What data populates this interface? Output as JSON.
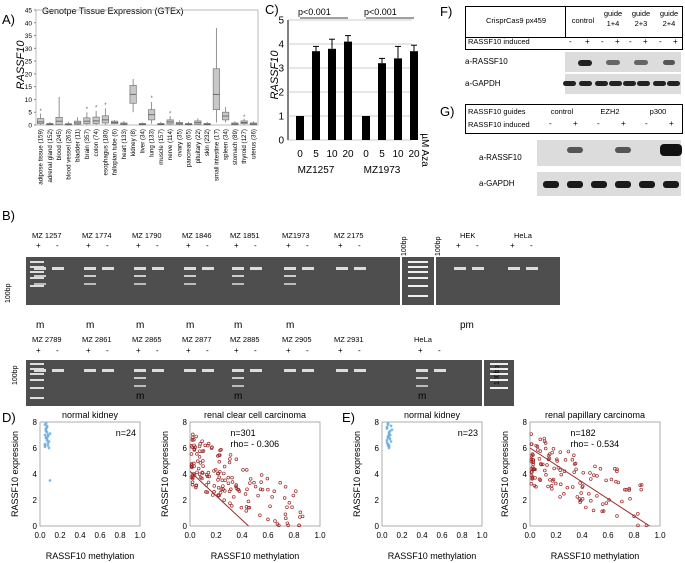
{
  "panels": {
    "A": "A)",
    "B": "B)",
    "C": "C)",
    "D": "D)",
    "E": "E)",
    "F": "F)",
    "G": "G)"
  },
  "panelA": {
    "title": "Genotpe Tissue Expression (GTEx)",
    "ylabel": "RASSF10",
    "yticks": [
      "0",
      "5",
      "10",
      "15",
      "20",
      "25",
      "30",
      "35",
      "40",
      "45"
    ],
    "tissues": [
      {
        "label": "adipose tissue (159)",
        "q1": 0.5,
        "med": 1.2,
        "q3": 2.5,
        "lo": 0.1,
        "hi": 4.5,
        "out": [
          5.5
        ]
      },
      {
        "label": "adrenal gland (152)",
        "q1": 0.1,
        "med": 0.3,
        "q3": 0.6,
        "lo": 0,
        "hi": 1.2,
        "out": []
      },
      {
        "label": "blood (245)",
        "q1": 0.2,
        "med": 1.5,
        "q3": 3.0,
        "lo": 0,
        "hi": 11,
        "out": []
      },
      {
        "label": "blood vessel (263)",
        "q1": 0.05,
        "med": 0.2,
        "q3": 0.5,
        "lo": 0,
        "hi": 1.2,
        "out": []
      },
      {
        "label": "bladder (11)",
        "q1": 0.3,
        "med": 0.8,
        "q3": 1.5,
        "lo": 0,
        "hi": 3,
        "out": []
      },
      {
        "label": "brain (357)",
        "q1": 0.5,
        "med": 1.5,
        "q3": 2.8,
        "lo": 0.1,
        "hi": 5,
        "out": [
          6.2
        ]
      },
      {
        "label": "colon (74)",
        "q1": 0.6,
        "med": 1.6,
        "q3": 3.1,
        "lo": 0.1,
        "hi": 5.5,
        "out": [
          6.8
        ]
      },
      {
        "label": "esophagus (180)",
        "q1": 0.8,
        "med": 2.0,
        "q3": 3.6,
        "lo": 0.1,
        "hi": 6.5,
        "out": [
          7.8
        ]
      },
      {
        "label": "fallopian tube (6)",
        "q1": 0.5,
        "med": 1.0,
        "q3": 1.5,
        "lo": 0.3,
        "hi": 2,
        "out": []
      },
      {
        "label": "heart (133)",
        "q1": 0.1,
        "med": 0.4,
        "q3": 0.8,
        "lo": 0,
        "hi": 1.6,
        "out": []
      },
      {
        "label": "kidney (8)",
        "q1": 8.5,
        "med": 12,
        "q3": 15.5,
        "lo": 5,
        "hi": 18,
        "out": []
      },
      {
        "label": "liver (34)",
        "q1": 0.1,
        "med": 0.3,
        "q3": 0.6,
        "lo": 0,
        "hi": 1,
        "out": []
      },
      {
        "label": "lung (133)",
        "q1": 2,
        "med": 4,
        "q3": 6,
        "lo": 0.5,
        "hi": 9,
        "out": [
          10.5
        ]
      },
      {
        "label": "muscle (157)",
        "q1": 0.1,
        "med": 0.3,
        "q3": 0.6,
        "lo": 0,
        "hi": 1.2,
        "out": []
      },
      {
        "label": "nerve (114)",
        "q1": 0.4,
        "med": 1.2,
        "q3": 2.0,
        "lo": 0.1,
        "hi": 3.5,
        "out": [
          4.5
        ]
      },
      {
        "label": "ovary (35)",
        "q1": 0.2,
        "med": 0.5,
        "q3": 1.0,
        "lo": 0,
        "hi": 1.8,
        "out": []
      },
      {
        "label": "pancreas (65)",
        "q1": 0.1,
        "med": 0.3,
        "q3": 0.6,
        "lo": 0,
        "hi": 1.2,
        "out": []
      },
      {
        "label": "pituitary (22)",
        "q1": 0.3,
        "med": 0.9,
        "q3": 1.6,
        "lo": 0.1,
        "hi": 2.6,
        "out": []
      },
      {
        "label": "skin (232)",
        "q1": 0.1,
        "med": 0.3,
        "q3": 0.6,
        "lo": 0,
        "hi": 1.2,
        "out": []
      },
      {
        "label": "small intestine (17)",
        "q1": 6,
        "med": 12,
        "q3": 22,
        "lo": 1,
        "hi": 38,
        "out": []
      },
      {
        "label": "spleen (34)",
        "q1": 2,
        "med": 3.5,
        "q3": 5,
        "lo": 1,
        "hi": 7,
        "out": []
      },
      {
        "label": "stomach (89)",
        "q1": 0.1,
        "med": 0.4,
        "q3": 0.8,
        "lo": 0,
        "hi": 1.4,
        "out": []
      },
      {
        "label": "thyroid (127)",
        "q1": 0.5,
        "med": 1.0,
        "q3": 1.6,
        "lo": 0.1,
        "hi": 2.5,
        "out": [
          3.2
        ]
      },
      {
        "label": "uterus (36)",
        "q1": 0.1,
        "med": 0.4,
        "q3": 0.8,
        "lo": 0,
        "hi": 1.4,
        "out": []
      }
    ]
  },
  "chart_data": [
    {
      "type": "bar",
      "title": "",
      "ylabel": "RASSF10",
      "ylim": [
        0,
        5
      ],
      "yticks": [
        "0",
        "1",
        "2",
        "3",
        "4",
        "5"
      ],
      "groups": [
        {
          "name": "MZ1257",
          "categories": [
            "0",
            "5",
            "10",
            "20"
          ],
          "values": [
            1.0,
            3.7,
            3.8,
            4.1
          ],
          "err": [
            0,
            0.2,
            0.4,
            0.25
          ]
        },
        {
          "name": "MZ1973",
          "categories": [
            "0",
            "5",
            "10",
            "20"
          ],
          "values": [
            1.0,
            3.2,
            3.4,
            3.7
          ],
          "err": [
            0,
            0.2,
            0.5,
            0.25
          ]
        }
      ],
      "annotations": [
        "p<0.001",
        "p<0.001"
      ],
      "unit_label": "µM Aza"
    },
    {
      "type": "scatter",
      "title": "normal kidney",
      "xlabel": "RASSF10 methylation",
      "ylabel": "RASSF10 expression",
      "n_label": "n=24",
      "xlim": [
        0,
        1.0
      ],
      "ylim": [
        0,
        8
      ],
      "x": [
        0.05,
        0.06,
        0.07,
        0.05,
        0.08,
        0.06,
        0.07,
        0.09,
        0.05,
        0.06,
        0.1,
        0.07,
        0.08,
        0.06,
        0.05,
        0.07,
        0.06,
        0.08,
        0.09,
        0.07,
        0.06,
        0.08,
        0.05,
        0.1
      ],
      "y": [
        7.8,
        7.5,
        7.2,
        7.0,
        6.9,
        6.8,
        7.6,
        6.5,
        6.3,
        7.3,
        7.1,
        6.6,
        6.2,
        7.4,
        6.1,
        6.7,
        7.9,
        6.4,
        6.0,
        7.7,
        6.8,
        7.0,
        6.2,
        3.5
      ]
    },
    {
      "type": "scatter",
      "title": "renal clear cell carcinoma",
      "xlabel": "RASSF10 methylation",
      "ylabel": "RASSF10 expression",
      "n_label": "n=301",
      "rho_label": "rho= - 0.306",
      "xlim": [
        0,
        1.0
      ],
      "ylim": [
        0,
        8
      ]
    },
    {
      "type": "scatter",
      "title": "normal kidney",
      "xlabel": "RASSF10 methylation",
      "ylabel": "RASSF10 expression",
      "n_label": "n=23",
      "xlim": [
        0,
        1.0
      ],
      "ylim": [
        0,
        8
      ],
      "x": [
        0.06,
        0.05,
        0.07,
        0.08,
        0.06,
        0.07,
        0.05,
        0.09,
        0.06,
        0.08,
        0.07,
        0.05,
        0.06,
        0.1,
        0.07,
        0.08,
        0.06,
        0.05,
        0.07,
        0.09,
        0.06,
        0.08,
        0.07
      ],
      "y": [
        7.8,
        7.5,
        7.2,
        7.0,
        6.9,
        6.8,
        7.6,
        6.5,
        6.3,
        7.3,
        7.1,
        6.6,
        6.2,
        7.4,
        6.1,
        6.7,
        7.9,
        6.4,
        6.0,
        7.7,
        6.8,
        7.0,
        6.2
      ]
    },
    {
      "type": "scatter",
      "title": "renal papillary carcinoma",
      "xlabel": "RASSF10 methylation",
      "ylabel": "RASSF10 expression",
      "n_label": "n=182",
      "rho_label": "rho= - 0.534",
      "xlim": [
        0,
        1.0
      ],
      "ylim": [
        0,
        8
      ]
    }
  ],
  "scatter_axes": {
    "xticks": [
      "0.0",
      "0.2",
      "0.4",
      "0.6",
      "0.8",
      "1.0"
    ],
    "yticks": [
      "0",
      "2",
      "4",
      "6",
      "8"
    ]
  },
  "panelB": {
    "row1": [
      "MZ 1257",
      "MZ 1774",
      "MZ 1790",
      "MZ 1846",
      "MZ 1851",
      "MZ1973",
      "MZ 2175"
    ],
    "row1b": [
      "HEK",
      "HeLa"
    ],
    "row1_status": [
      "m",
      "m",
      "m",
      "m",
      "m",
      "m",
      ""
    ],
    "row1b_status": [
      "pm",
      ""
    ],
    "row2": [
      "MZ 2789",
      "MZ 2861",
      "MZ 2865",
      "MZ 2877",
      "MZ 2885",
      "MZ 2905",
      "MZ 2931",
      "HeLa"
    ],
    "row2_status": [
      "",
      "",
      "m",
      "",
      "m",
      "",
      "",
      "m"
    ],
    "ladder": "100bp",
    "plus": "+",
    "minus": "-"
  },
  "panelF": {
    "header": "CrisprCas9 px459",
    "cols": [
      "control",
      "guide 1+4",
      "guide 2+3",
      "guide 2+4"
    ],
    "induced": "RASSF10 induced",
    "signs": [
      "-",
      "+",
      "-",
      "+",
      "-",
      "+",
      "-",
      "+"
    ],
    "blot1": "a-RASSF10",
    "blot2": "a-GAPDH"
  },
  "panelG": {
    "header": "RASSF10 guides",
    "cols": [
      "control",
      "EZH2",
      "p300"
    ],
    "induced": "RASSF10 induced",
    "signs": [
      "-",
      "+",
      "-",
      "+",
      "-",
      "+"
    ],
    "blot1": "a-RASSF10",
    "blot2": "a-GAPDH"
  }
}
